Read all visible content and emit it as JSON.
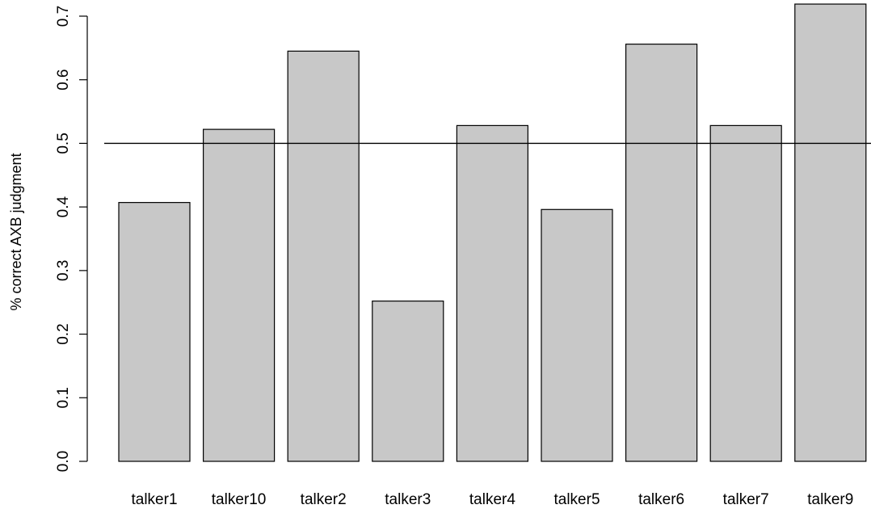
{
  "chart_data": {
    "type": "bar",
    "title": "",
    "xlabel": "",
    "ylabel": "% correct AXB judgment",
    "categories": [
      "talker1",
      "talker10",
      "talker2",
      "talker3",
      "talker4",
      "talker5",
      "talker6",
      "talker7",
      "talker9"
    ],
    "values": [
      0.407,
      0.522,
      0.645,
      0.252,
      0.528,
      0.396,
      0.656,
      0.528,
      0.719
    ],
    "ylim": [
      0,
      0.7
    ],
    "yticks": [
      "0.0",
      "0.1",
      "0.2",
      "0.3",
      "0.4",
      "0.5",
      "0.6",
      "0.7"
    ],
    "reference_line": 0.5,
    "bar_color": "#c8c8c8",
    "outline_color": "#000000",
    "grid": false,
    "legend": "none"
  }
}
